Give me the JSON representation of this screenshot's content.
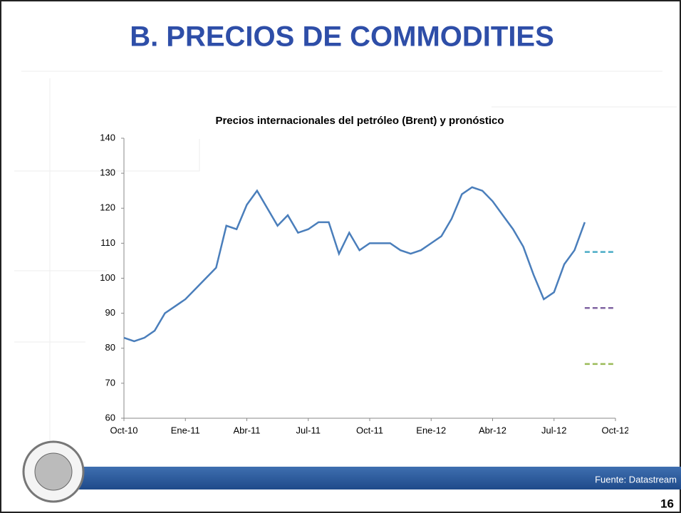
{
  "slide": {
    "title": "B. PRECIOS DE COMMODITIES",
    "source": "Fuente: Datastream",
    "page_number": "16"
  },
  "chart_data": {
    "type": "line",
    "title": "Precios internacionales del petróleo (Brent) y pronóstico",
    "xticks": [
      "Oct-10",
      "Ene-11",
      "Abr-11",
      "Jul-11",
      "Oct-11",
      "Ene-12",
      "Abr-12",
      "Jul-12",
      "Oct-12"
    ],
    "series": [
      {
        "color": "#4a7ebb",
        "values": [
          83,
          82,
          83,
          85,
          90,
          92,
          94,
          97,
          100,
          103,
          115,
          114,
          121,
          125,
          120,
          115,
          118,
          113,
          114,
          116,
          116,
          107,
          113,
          108,
          110,
          110,
          110,
          108,
          107,
          108,
          110,
          112,
          117,
          124,
          126,
          125,
          122,
          118,
          114,
          109,
          101,
          94,
          96,
          104,
          108,
          116
        ]
      }
    ],
    "forecasts": [
      {
        "color": "#4bacc6",
        "value": 107.5
      },
      {
        "color": "#8064a2",
        "value": 91.5
      },
      {
        "color": "#9bbb59",
        "value": 75.5
      }
    ],
    "ylim": [
      60,
      140
    ],
    "yticks": [
      60,
      70,
      80,
      90,
      100,
      110,
      120,
      130,
      140
    ]
  }
}
